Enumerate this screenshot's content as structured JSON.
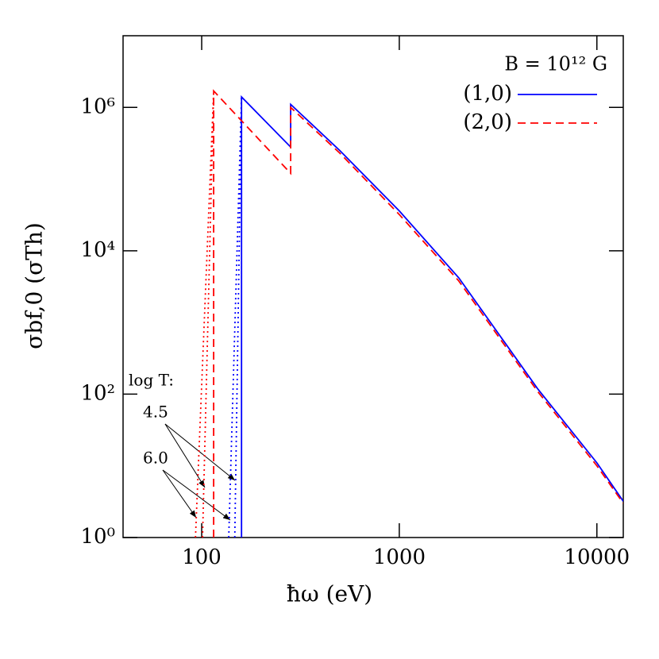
{
  "chart_data": {
    "type": "line",
    "x_label": "ħω  (eV)",
    "y_label": "σbf,0  (σTh)",
    "annotations": [
      "B = 10¹² G",
      "log T:",
      "4.5",
      "6.0"
    ],
    "log_x": true,
    "log_y": true,
    "xlim": [
      40,
      13600
    ],
    "ylim": [
      1,
      10000000
    ],
    "xticks": [
      100,
      1000,
      10000
    ],
    "yticks": [
      {
        "value": 1,
        "label": "10⁰"
      },
      {
        "value": 100,
        "label": "10²"
      },
      {
        "value": 10000,
        "label": "10⁴"
      },
      {
        "value": 1000000,
        "label": "10⁶"
      }
    ],
    "legend": "upper right",
    "series": [
      {
        "name": "(1,0)",
        "color": "#0000ff",
        "dash": "solid",
        "x": [
          159,
          159,
          282,
          282,
          500,
          1000,
          2000,
          5000,
          10000,
          13600
        ],
        "values": [
          1,
          1400000,
          280000,
          1100000,
          250000,
          36000,
          4200,
          120,
          11,
          3.2
        ]
      },
      {
        "name": "(2,0)",
        "color": "#ff0000",
        "dash": "dashed",
        "x": [
          115,
          115,
          282,
          282,
          500,
          1000,
          2000,
          5000,
          10000,
          13600
        ],
        "values": [
          1,
          1700000,
          120000,
          1000000,
          230000,
          32000,
          3800,
          110,
          10,
          3
        ]
      },
      {
        "color": "#0000ff",
        "dash": "dotted",
        "x": [
          137,
          159
        ],
        "values": [
          1,
          1400000
        ]
      },
      {
        "color": "#0000ff",
        "dash": "dotted",
        "x": [
          147,
          159
        ],
        "values": [
          1,
          1400000
        ]
      },
      {
        "color": "#ff0000",
        "dash": "dotted",
        "x": [
          93,
          115
        ],
        "values": [
          1,
          1700000
        ]
      },
      {
        "color": "#ff0000",
        "dash": "dotted",
        "x": [
          101,
          115
        ],
        "values": [
          1,
          1700000
        ]
      }
    ]
  }
}
